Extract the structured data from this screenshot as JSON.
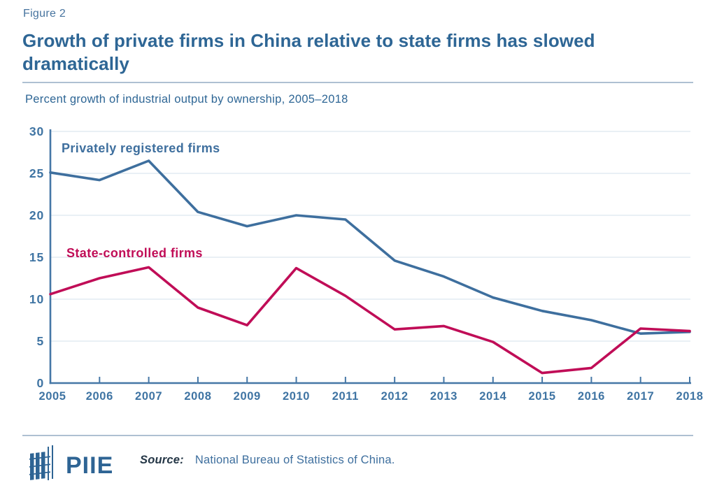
{
  "header": {
    "figure_label": "Figure 2",
    "title": "Growth of private firms in China relative to state firms has slowed dramatically",
    "subtitle": "Percent growth of industrial output by ownership, 2005–2018"
  },
  "footer": {
    "logo_text": "PIIE",
    "source_label": "Source:",
    "source_text": "National Bureau of Statistics of China."
  },
  "colors": {
    "accent_blue": "#3e6f9e",
    "accent_crimson": "#c00d57",
    "title_blue": "#2e6695",
    "axis_blue": "#4577a6",
    "gridline": "#dce6ef",
    "divider": "#aec0d2"
  },
  "chart_data": {
    "type": "line",
    "title": "Growth of private firms in China relative to state firms has slowed dramatically",
    "subtitle": "Percent growth of industrial output by ownership, 2005–2018",
    "xlabel": "",
    "ylabel": "Percent growth of industrial output",
    "x": [
      2005,
      2006,
      2007,
      2008,
      2009,
      2010,
      2011,
      2012,
      2013,
      2014,
      2015,
      2016,
      2017,
      2018
    ],
    "series": [
      {
        "name": "Privately registered firms",
        "color": "#3e6f9e",
        "values": [
          25.1,
          24.2,
          26.5,
          20.4,
          18.7,
          20.0,
          19.5,
          14.6,
          12.7,
          10.2,
          8.6,
          7.5,
          5.9,
          6.1
        ]
      },
      {
        "name": "State-controlled firms",
        "color": "#c00d57",
        "values": [
          10.6,
          12.5,
          13.8,
          9.0,
          6.9,
          13.7,
          10.4,
          6.4,
          6.8,
          4.9,
          1.2,
          1.8,
          6.5,
          6.2
        ]
      }
    ],
    "ylim": [
      0,
      30
    ],
    "yticks": [
      0,
      5,
      10,
      15,
      20,
      25,
      30
    ],
    "grid": "horizontal",
    "legend": "inline-labels-on-chart"
  }
}
